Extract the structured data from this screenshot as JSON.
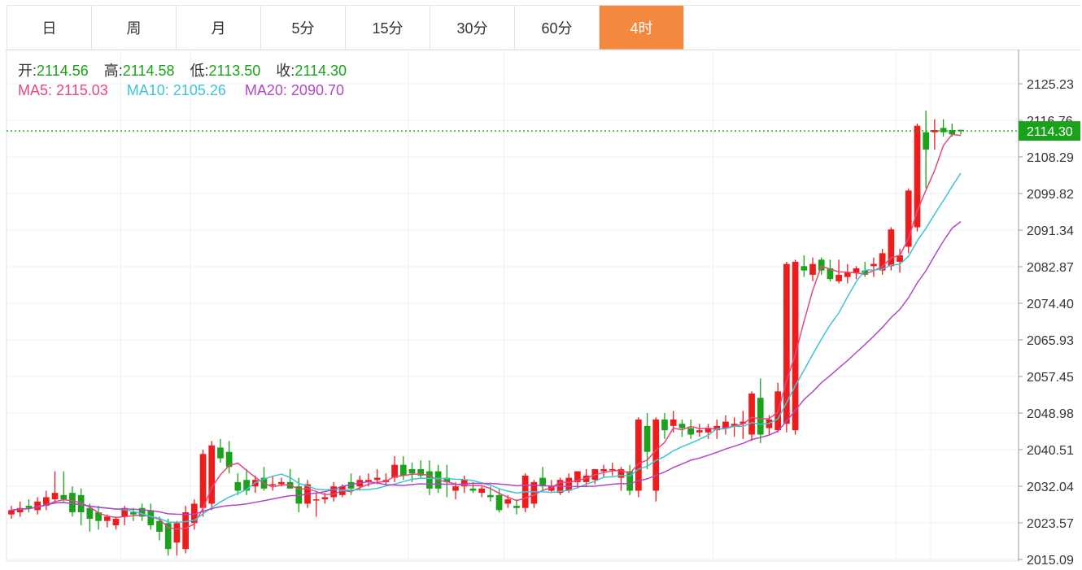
{
  "tabs": [
    {
      "label": "日",
      "active": false
    },
    {
      "label": "周",
      "active": false
    },
    {
      "label": "月",
      "active": false
    },
    {
      "label": "5分",
      "active": false
    },
    {
      "label": "15分",
      "active": false
    },
    {
      "label": "30分",
      "active": false
    },
    {
      "label": "60分",
      "active": false
    },
    {
      "label": "4时",
      "active": true
    }
  ],
  "ohlc_legend": {
    "open_label": "开:",
    "open": "2114.56",
    "high_label": "高:",
    "high": "2114.58",
    "low_label": "低:",
    "low": "2113.50",
    "close_label": "收:",
    "close": "2114.30"
  },
  "ma_legend": {
    "ma5_label": "MA5:",
    "ma5": "2115.03",
    "ma10_label": "MA10:",
    "ma10": "2105.26",
    "ma20_label": "MA20:",
    "ma20": "2090.70"
  },
  "colors": {
    "up": "#ee1c1c",
    "down": "#1aa31a",
    "ma5": "#e8477d",
    "ma10": "#3ec4d6",
    "ma20": "#b047c8",
    "accent": "#f2893e",
    "last_price": "#1aa31a"
  },
  "chart_data": {
    "type": "candlestick",
    "y_ticks": [
      2125.23,
      2116.76,
      2108.29,
      2099.82,
      2091.34,
      2082.87,
      2074.4,
      2065.93,
      2057.45,
      2048.98,
      2040.51,
      2032.04,
      2023.57,
      2015.09
    ],
    "last_price": "2114.30",
    "ylim": [
      2015.09,
      2125.23
    ],
    "grid": true,
    "candles": [
      [
        2025.5,
        2027.5,
        2024.5,
        2026.5
      ],
      [
        2026.0,
        2028.5,
        2025.0,
        2027.0
      ],
      [
        2027.5,
        2029.0,
        2026.0,
        2027.0
      ],
      [
        2026.5,
        2029.5,
        2025.5,
        2028.5
      ],
      [
        2027.5,
        2031.0,
        2026.5,
        2029.5
      ],
      [
        2029.0,
        2035.5,
        2028.0,
        2030.5
      ],
      [
        2030.0,
        2035.5,
        2028.5,
        2029.0
      ],
      [
        2030.5,
        2032.0,
        2025.0,
        2026.0
      ],
      [
        2030.0,
        2031.5,
        2023.0,
        2026.0
      ],
      [
        2027.0,
        2028.0,
        2021.5,
        2024.5
      ],
      [
        2026.0,
        2027.5,
        2022.0,
        2024.0
      ],
      [
        2024.0,
        2025.5,
        2022.5,
        2025.0
      ],
      [
        2023.0,
        2025.0,
        2022.0,
        2024.5
      ],
      [
        2025.0,
        2027.5,
        2023.0,
        2027.0
      ],
      [
        2026.0,
        2027.0,
        2024.0,
        2025.5
      ],
      [
        2027.0,
        2028.0,
        2024.0,
        2025.0
      ],
      [
        2026.5,
        2028.0,
        2022.0,
        2023.0
      ],
      [
        2024.0,
        2025.0,
        2019.5,
        2021.5
      ],
      [
        2023.5,
        2024.5,
        2016.0,
        2017.5
      ],
      [
        2019.0,
        2024.0,
        2016.0,
        2023.5
      ],
      [
        2017.5,
        2027.5,
        2016.5,
        2026.0
      ],
      [
        2023.5,
        2029.0,
        2022.0,
        2028.0
      ],
      [
        2027.0,
        2040.5,
        2025.0,
        2039.5
      ],
      [
        2028.0,
        2042.5,
        2026.5,
        2041.5
      ],
      [
        2041.0,
        2043.0,
        2037.5,
        2038.5
      ],
      [
        2040.0,
        2042.5,
        2035.0,
        2036.5
      ],
      [
        2033.0,
        2035.0,
        2030.0,
        2031.0
      ],
      [
        2033.5,
        2036.0,
        2030.0,
        2031.0
      ],
      [
        2032.0,
        2034.5,
        2030.5,
        2033.5
      ],
      [
        2034.0,
        2036.5,
        2031.0,
        2031.5
      ],
      [
        2032.5,
        2034.5,
        2031.0,
        2032.5
      ],
      [
        2032.5,
        2034.0,
        2032.0,
        2033.0
      ],
      [
        2033.0,
        2036.0,
        2031.5,
        2031.5
      ],
      [
        2032.0,
        2034.0,
        2026.0,
        2028.0
      ],
      [
        2028.0,
        2033.5,
        2027.0,
        2032.5
      ],
      [
        2029.0,
        2030.5,
        2025.0,
        2029.0
      ],
      [
        2029.0,
        2030.5,
        2028.0,
        2029.5
      ],
      [
        2029.5,
        2033.0,
        2028.5,
        2032.0
      ],
      [
        2030.0,
        2032.5,
        2029.5,
        2032.0
      ],
      [
        2033.0,
        2035.0,
        2030.0,
        2031.5
      ],
      [
        2032.0,
        2034.5,
        2031.0,
        2033.5
      ],
      [
        2033.0,
        2035.0,
        2032.0,
        2033.5
      ],
      [
        2033.5,
        2036.0,
        2032.5,
        2034.0
      ],
      [
        2033.0,
        2035.0,
        2032.0,
        2033.5
      ],
      [
        2034.0,
        2039.0,
        2033.0,
        2037.0
      ],
      [
        2037.0,
        2039.0,
        2033.5,
        2034.5
      ],
      [
        2036.0,
        2037.5,
        2033.0,
        2035.0
      ],
      [
        2036.0,
        2038.0,
        2034.0,
        2034.5
      ],
      [
        2035.5,
        2038.0,
        2030.0,
        2031.5
      ],
      [
        2035.5,
        2037.0,
        2030.5,
        2031.5
      ],
      [
        2034.0,
        2037.0,
        2029.5,
        2033.0
      ],
      [
        2031.0,
        2033.0,
        2029.0,
        2032.0
      ],
      [
        2032.0,
        2034.5,
        2030.5,
        2033.5
      ],
      [
        2031.5,
        2033.0,
        2030.5,
        2031.0
      ],
      [
        2030.5,
        2032.0,
        2029.5,
        2031.5
      ],
      [
        2030.0,
        2032.0,
        2028.5,
        2029.5
      ],
      [
        2030.0,
        2031.5,
        2026.0,
        2026.5
      ],
      [
        2028.0,
        2030.0,
        2027.0,
        2029.0
      ],
      [
        2027.5,
        2029.0,
        2025.5,
        2027.0
      ],
      [
        2027.0,
        2035.0,
        2026.0,
        2034.5
      ],
      [
        2028.0,
        2033.5,
        2027.0,
        2033.0
      ],
      [
        2034.0,
        2036.5,
        2031.0,
        2032.0
      ],
      [
        2031.0,
        2033.5,
        2030.5,
        2032.0
      ],
      [
        2030.5,
        2034.0,
        2030.0,
        2033.5
      ],
      [
        2031.0,
        2035.0,
        2030.5,
        2034.0
      ],
      [
        2033.0,
        2035.5,
        2031.5,
        2035.5
      ],
      [
        2033.0,
        2036.0,
        2032.0,
        2034.5
      ],
      [
        2033.5,
        2036.0,
        2032.5,
        2036.0
      ],
      [
        2035.5,
        2037.0,
        2034.0,
        2036.0
      ],
      [
        2036.0,
        2037.5,
        2034.5,
        2036.0
      ],
      [
        2034.0,
        2036.5,
        2031.0,
        2036.0
      ],
      [
        2035.5,
        2037.0,
        2030.0,
        2031.0
      ],
      [
        2031.0,
        2048.0,
        2029.5,
        2047.5
      ],
      [
        2046.0,
        2049.0,
        2036.0,
        2040.0
      ],
      [
        2031.0,
        2048.0,
        2028.5,
        2047.5
      ],
      [
        2047.5,
        2049.0,
        2043.0,
        2045.0
      ],
      [
        2046.0,
        2049.5,
        2044.5,
        2047.5
      ],
      [
        2046.5,
        2047.5,
        2043.5,
        2045.5
      ],
      [
        2045.5,
        2047.5,
        2043.0,
        2044.0
      ],
      [
        2044.5,
        2046.5,
        2043.5,
        2045.0
      ],
      [
        2044.5,
        2046.5,
        2043.0,
        2045.5
      ],
      [
        2045.0,
        2047.5,
        2043.0,
        2046.0
      ],
      [
        2045.5,
        2048.5,
        2044.0,
        2047.0
      ],
      [
        2046.0,
        2048.0,
        2043.5,
        2046.5
      ],
      [
        2046.5,
        2049.5,
        2043.0,
        2047.0
      ],
      [
        2044.0,
        2054.0,
        2042.5,
        2053.5
      ],
      [
        2052.5,
        2057.0,
        2042.0,
        2044.0
      ],
      [
        2045.5,
        2048.5,
        2044.0,
        2047.5
      ],
      [
        2045.0,
        2056.0,
        2044.5,
        2054.0
      ],
      [
        2046.5,
        2084.0,
        2044.5,
        2083.5
      ],
      [
        2045.0,
        2084.5,
        2044.0,
        2084.0
      ],
      [
        2083.0,
        2085.5,
        2080.5,
        2082.0
      ],
      [
        2081.0,
        2085.0,
        2079.5,
        2083.5
      ],
      [
        2084.5,
        2085.0,
        2081.0,
        2082.0
      ],
      [
        2082.5,
        2084.5,
        2079.5,
        2080.0
      ],
      [
        2079.5,
        2084.5,
        2079.0,
        2081.0
      ],
      [
        2080.5,
        2083.5,
        2079.0,
        2081.5
      ],
      [
        2081.5,
        2083.0,
        2080.0,
        2082.5
      ],
      [
        2082.0,
        2084.0,
        2080.5,
        2081.0
      ],
      [
        2083.0,
        2085.0,
        2080.5,
        2083.5
      ],
      [
        2082.0,
        2087.0,
        2081.0,
        2086.0
      ],
      [
        2083.0,
        2092.0,
        2082.0,
        2091.5
      ],
      [
        2084.0,
        2087.0,
        2081.5,
        2085.5
      ],
      [
        2087.5,
        2101.0,
        2086.0,
        2100.5
      ],
      [
        2092.0,
        2116.0,
        2091.0,
        2115.5
      ],
      [
        2114.0,
        2119.0,
        2101.0,
        2110.0
      ],
      [
        2114.0,
        2117.0,
        2110.0,
        2114.5
      ],
      [
        2115.0,
        2117.0,
        2113.0,
        2114.0
      ],
      [
        2114.5,
        2116.0,
        2113.0,
        2113.5
      ],
      [
        2114.56,
        2114.58,
        2113.5,
        2114.3
      ]
    ]
  }
}
